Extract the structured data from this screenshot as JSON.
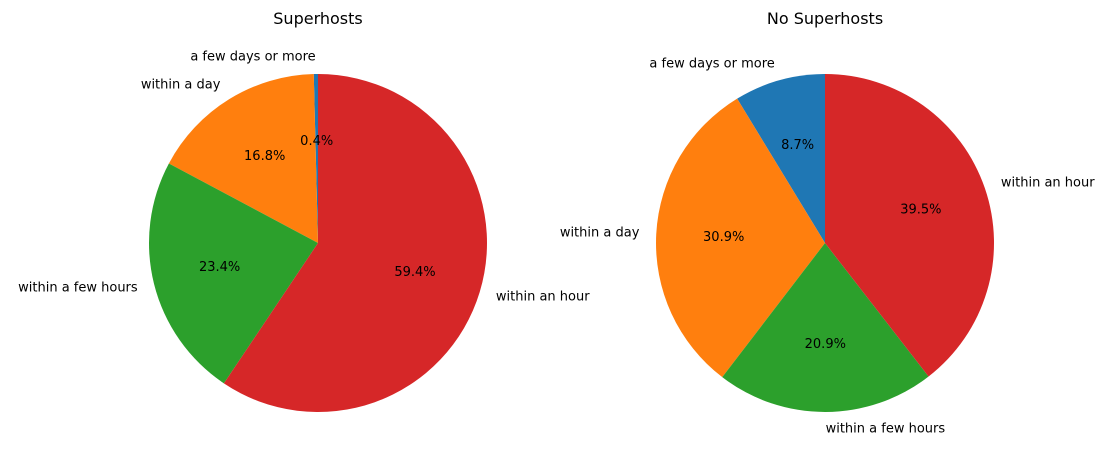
{
  "chart_data": [
    {
      "type": "pie",
      "title": "Superhosts",
      "start_angle_deg": 90,
      "counterclockwise": true,
      "slices": [
        {
          "label": "a few days or more",
          "value": 0.4,
          "pct_text": "0.4%",
          "color": "#1f77b4"
        },
        {
          "label": "within a day",
          "value": 16.8,
          "pct_text": "16.8%",
          "color": "#ff7f0e"
        },
        {
          "label": "within a few hours",
          "value": 23.4,
          "pct_text": "23.4%",
          "color": "#2ca02c"
        },
        {
          "label": "within an hour",
          "value": 59.4,
          "pct_text": "59.4%",
          "color": "#d62728"
        }
      ]
    },
    {
      "type": "pie",
      "title": "No Superhosts",
      "start_angle_deg": 90,
      "counterclockwise": true,
      "slices": [
        {
          "label": "a few days or more",
          "value": 8.7,
          "pct_text": "8.7%",
          "color": "#1f77b4"
        },
        {
          "label": "within a day",
          "value": 30.9,
          "pct_text": "30.9%",
          "color": "#ff7f0e"
        },
        {
          "label": "within a few hours",
          "value": 20.9,
          "pct_text": "20.9%",
          "color": "#2ca02c"
        },
        {
          "label": "within an hour",
          "value": 39.5,
          "pct_text": "39.5%",
          "color": "#d62728"
        }
      ]
    }
  ]
}
